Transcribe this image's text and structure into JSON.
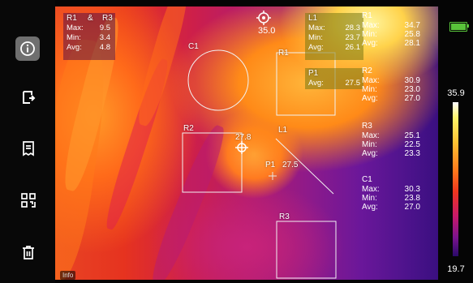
{
  "toolbar": {
    "items": [
      {
        "icon": "info-icon",
        "active": true
      },
      {
        "icon": "export-icon",
        "active": false
      },
      {
        "icon": "report-icon",
        "active": false
      },
      {
        "icon": "qr-code-icon",
        "active": false
      },
      {
        "icon": "trash-icon",
        "active": false
      }
    ]
  },
  "image": {
    "top_temp": "35.0",
    "info_tag": "Info",
    "diff_box": {
      "title_a": "R1",
      "title_amp": "&",
      "title_b": "R3",
      "rows": [
        {
          "k": "Max:",
          "v": "9.5"
        },
        {
          "k": "Min:",
          "v": "3.4"
        },
        {
          "k": "Avg:",
          "v": "4.8"
        }
      ]
    },
    "l1_box": {
      "title": "L1",
      "rows": [
        {
          "k": "Max:",
          "v": "28.3"
        },
        {
          "k": "Min:",
          "v": "23.7"
        },
        {
          "k": "Avg:",
          "v": "26.1"
        }
      ]
    },
    "p1_box": {
      "title": "P1",
      "row": {
        "k": "Avg:",
        "v": "27.5"
      }
    },
    "labels": {
      "c1": "C1",
      "r1": "R1",
      "r2": "R2",
      "r3": "R3",
      "l1": "L1",
      "p1": "P1",
      "p1_value": "27.5",
      "cursor_value": "27.8"
    }
  },
  "panel": {
    "groups": [
      {
        "name": "R1",
        "rows": [
          {
            "k": "Max:",
            "v": "34.7"
          },
          {
            "k": "Min:",
            "v": "25.8"
          },
          {
            "k": "Avg:",
            "v": "28.1"
          }
        ]
      },
      {
        "name": "R2",
        "rows": [
          {
            "k": "Max:",
            "v": "30.9"
          },
          {
            "k": "Min:",
            "v": "23.0"
          },
          {
            "k": "Avg:",
            "v": "27.0"
          }
        ]
      },
      {
        "name": "R3",
        "rows": [
          {
            "k": "Max:",
            "v": "25.1"
          },
          {
            "k": "Min:",
            "v": "22.5"
          },
          {
            "k": "Avg:",
            "v": "23.3"
          }
        ]
      },
      {
        "name": "C1",
        "rows": [
          {
            "k": "Max:",
            "v": "30.3"
          },
          {
            "k": "Min:",
            "v": "23.8"
          },
          {
            "k": "Avg:",
            "v": "27.0"
          }
        ]
      }
    ]
  },
  "scale": {
    "max": "35.9",
    "min": "19.7",
    "battery_color": "#59c43a"
  },
  "colors": {
    "roi_outline": "#f2f2f2",
    "active_tool_bg": "#6f6f6f"
  }
}
